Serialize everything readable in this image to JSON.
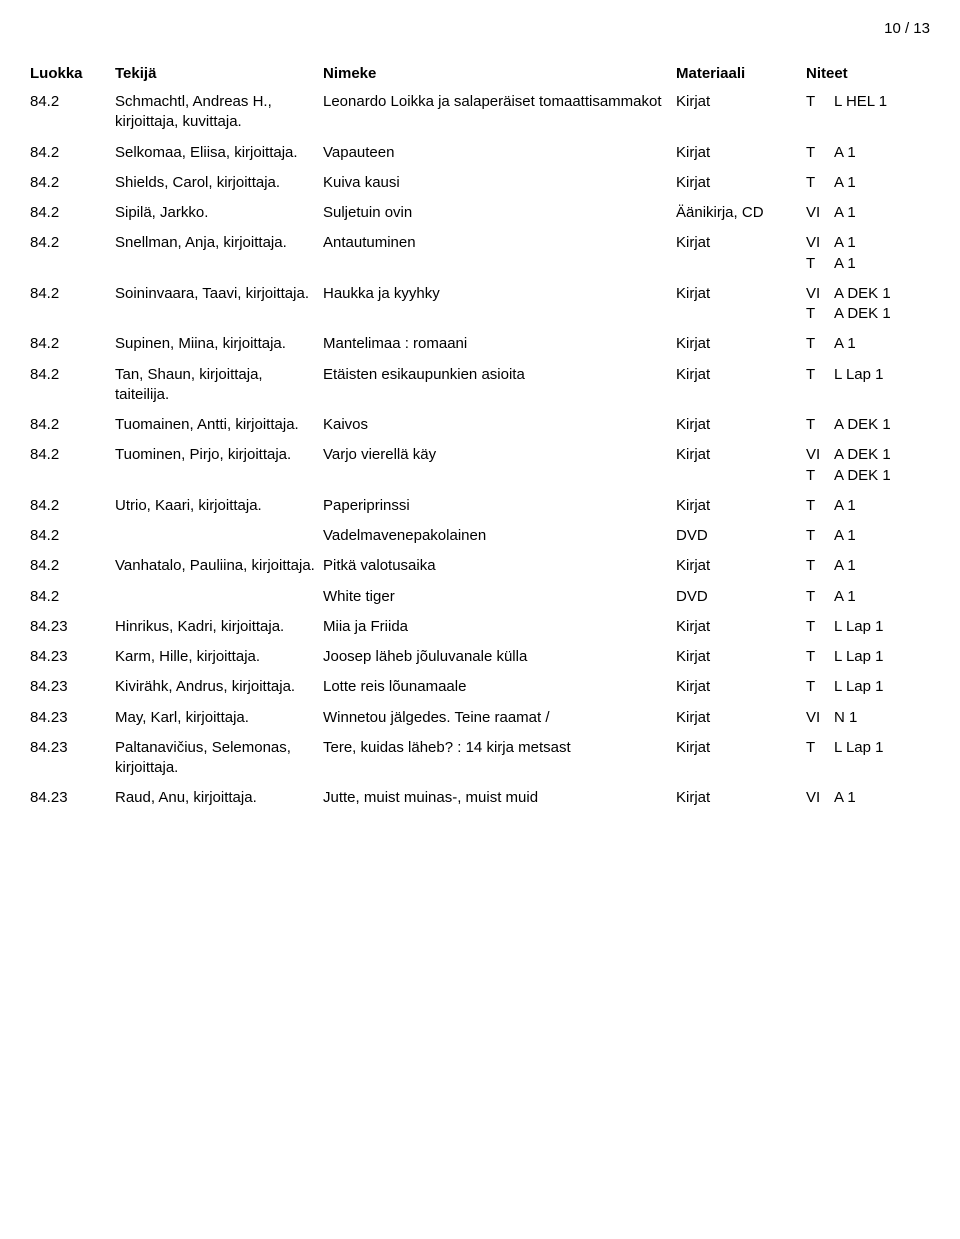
{
  "page_number": "10 / 13",
  "headers": {
    "luokka": "Luokka",
    "tekija": "Tekijä",
    "nimeke": "Nimeke",
    "materiaali": "Materiaali",
    "niteet": "Niteet"
  },
  "rows": [
    {
      "luokka": "84.2",
      "tekija": "Schmachtl, Andreas H., kirjoittaja, kuvittaja.",
      "nimeke": "Leonardo Loikka ja salaperäiset tomaattisammakot",
      "materiaali": "Kirjat",
      "niteet": [
        {
          "code": "T",
          "val": "L HEL 1"
        }
      ]
    },
    {
      "luokka": "84.2",
      "tekija": "Selkomaa, Eliisa, kirjoittaja.",
      "nimeke": "Vapauteen",
      "materiaali": "Kirjat",
      "niteet": [
        {
          "code": "T",
          "val": "A 1"
        }
      ]
    },
    {
      "luokka": "84.2",
      "tekija": "Shields, Carol, kirjoittaja.",
      "nimeke": "Kuiva kausi",
      "materiaali": "Kirjat",
      "niteet": [
        {
          "code": "T",
          "val": "A 1"
        }
      ]
    },
    {
      "luokka": "84.2",
      "tekija": "Sipilä, Jarkko.",
      "nimeke": "Suljetuin ovin",
      "materiaali": "Äänikirja, CD",
      "niteet": [
        {
          "code": "VI",
          "val": "A 1"
        }
      ]
    },
    {
      "luokka": "84.2",
      "tekija": "Snellman, Anja, kirjoittaja.",
      "nimeke": "Antautuminen",
      "materiaali": "Kirjat",
      "niteet": [
        {
          "code": "VI",
          "val": "A 1"
        },
        {
          "code": "T",
          "val": "A 1"
        }
      ]
    },
    {
      "luokka": "84.2",
      "tekija": "Soininvaara, Taavi, kirjoittaja.",
      "nimeke": "Haukka ja kyyhky",
      "materiaali": "Kirjat",
      "niteet": [
        {
          "code": "VI",
          "val": "A DEK 1"
        },
        {
          "code": "T",
          "val": "A DEK 1"
        }
      ]
    },
    {
      "luokka": "84.2",
      "tekija": "Supinen, Miina, kirjoittaja.",
      "nimeke": "Mantelimaa : romaani",
      "materiaali": "Kirjat",
      "niteet": [
        {
          "code": "T",
          "val": "A 1"
        }
      ]
    },
    {
      "luokka": "84.2",
      "tekija": "Tan, Shaun, kirjoittaja, taiteilija.",
      "nimeke": "Etäisten esikaupunkien asioita",
      "materiaali": "Kirjat",
      "niteet": [
        {
          "code": "T",
          "val": "L Lap 1"
        }
      ]
    },
    {
      "luokka": "84.2",
      "tekija": "Tuomainen, Antti, kirjoittaja.",
      "nimeke": "Kaivos",
      "materiaali": "Kirjat",
      "niteet": [
        {
          "code": "T",
          "val": "A DEK 1"
        }
      ]
    },
    {
      "luokka": "84.2",
      "tekija": "Tuominen, Pirjo, kirjoittaja.",
      "nimeke": "Varjo vierellä käy",
      "materiaali": "Kirjat",
      "niteet": [
        {
          "code": "VI",
          "val": "A DEK 1"
        },
        {
          "code": "T",
          "val": "A DEK 1"
        }
      ]
    },
    {
      "luokka": "84.2",
      "tekija": "Utrio, Kaari, kirjoittaja.",
      "nimeke": "Paperiprinssi",
      "materiaali": "Kirjat",
      "niteet": [
        {
          "code": "T",
          "val": "A 1"
        }
      ]
    },
    {
      "luokka": "84.2",
      "tekija": "",
      "nimeke": "Vadelmavenepakolainen",
      "materiaali": "DVD",
      "niteet": [
        {
          "code": "T",
          "val": "A 1"
        }
      ]
    },
    {
      "luokka": "84.2",
      "tekija": "Vanhatalo, Pauliina, kirjoittaja.",
      "nimeke": "Pitkä valotusaika",
      "materiaali": "Kirjat",
      "niteet": [
        {
          "code": "T",
          "val": "A 1"
        }
      ]
    },
    {
      "luokka": "84.2",
      "tekija": "",
      "nimeke": "White tiger",
      "materiaali": "DVD",
      "niteet": [
        {
          "code": "T",
          "val": "A 1"
        }
      ]
    },
    {
      "luokka": "84.23",
      "tekija": "Hinrikus, Kadri, kirjoittaja.",
      "nimeke": "Miia ja Friida",
      "materiaali": "Kirjat",
      "niteet": [
        {
          "code": "T",
          "val": "L Lap 1"
        }
      ]
    },
    {
      "luokka": "84.23",
      "tekija": "Karm, Hille, kirjoittaja.",
      "nimeke": "Joosep läheb jõuluvanale külla",
      "materiaali": "Kirjat",
      "niteet": [
        {
          "code": "T",
          "val": "L Lap 1"
        }
      ]
    },
    {
      "luokka": "84.23",
      "tekija": "Kivirähk, Andrus, kirjoittaja.",
      "nimeke": "Lotte reis lõunamaale",
      "materiaali": "Kirjat",
      "niteet": [
        {
          "code": "T",
          "val": "L Lap 1"
        }
      ]
    },
    {
      "luokka": "84.23",
      "tekija": "May, Karl, kirjoittaja.",
      "nimeke": "Winnetou jälgedes. Teine raamat /",
      "materiaali": "Kirjat",
      "niteet": [
        {
          "code": "VI",
          "val": "N 1"
        }
      ]
    },
    {
      "luokka": "84.23",
      "tekija": "Paltanavičius, Selemonas, kirjoittaja.",
      "nimeke": "Tere, kuidas läheb? : 14 kirja metsast",
      "materiaali": "Kirjat",
      "niteet": [
        {
          "code": "T",
          "val": "L Lap 1"
        }
      ]
    },
    {
      "luokka": "84.23",
      "tekija": "Raud, Anu, kirjoittaja.",
      "nimeke": "Jutte, muist muinas-, muist muid",
      "materiaali": "Kirjat",
      "niteet": [
        {
          "code": "VI",
          "val": "A 1"
        }
      ]
    }
  ]
}
